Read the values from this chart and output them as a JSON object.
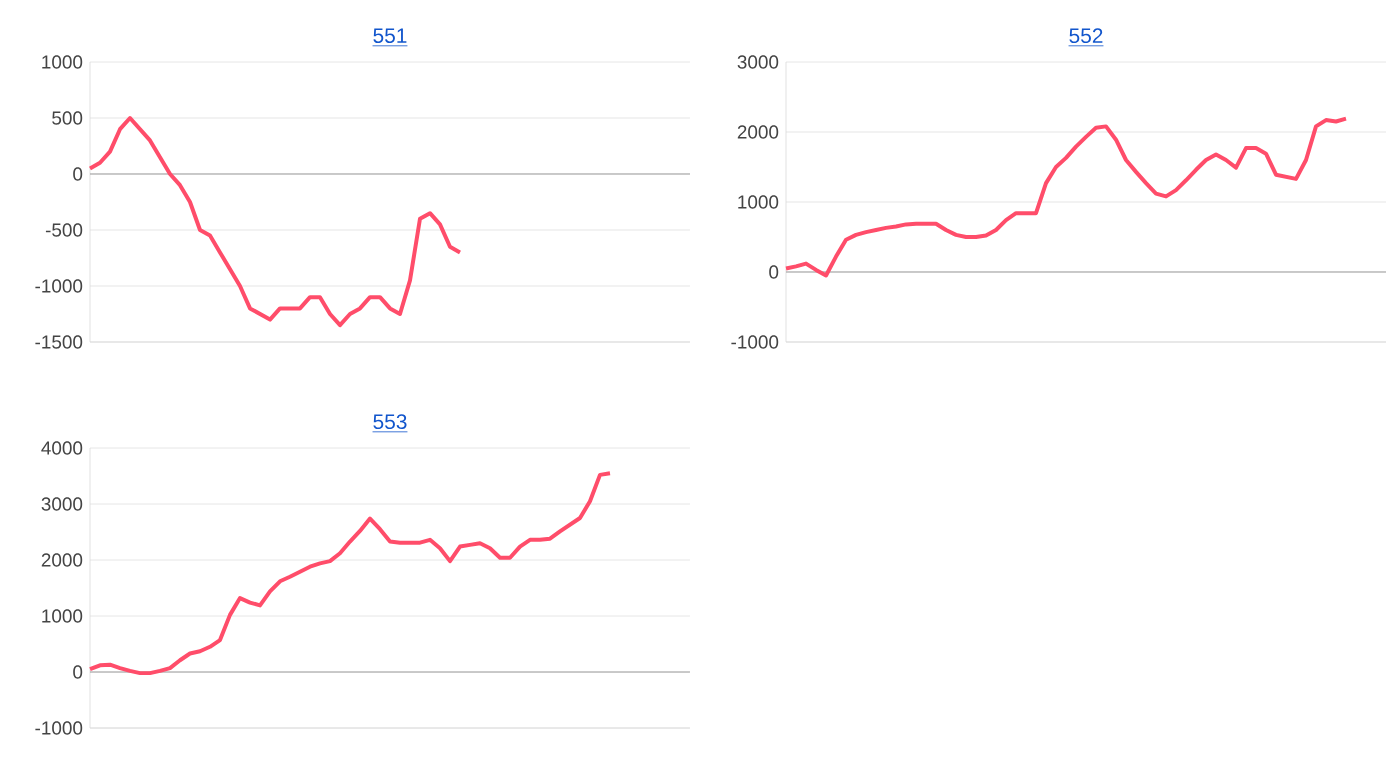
{
  "chart_data": [
    {
      "type": "line",
      "title": "551",
      "categories": [
        null,
        null,
        null,
        null,
        null,
        null,
        null,
        null,
        null,
        null,
        null,
        null,
        null,
        null,
        null,
        null,
        null,
        null,
        null,
        null,
        null,
        null,
        null,
        null,
        null,
        null,
        null,
        null,
        null,
        null,
        null,
        null,
        null,
        null,
        null,
        null,
        null,
        null,
        null,
        null,
        null,
        null,
        null,
        null,
        null,
        null,
        null,
        null,
        null,
        null,
        null,
        null,
        null,
        null,
        null,
        null,
        null,
        null,
        null,
        null,
        null
      ],
      "values": [
        50,
        100,
        200,
        400,
        500,
        400,
        300,
        150,
        0,
        -100,
        -250,
        -500,
        -550,
        -700,
        -850,
        -1000,
        -1200,
        -1250,
        -1300,
        -1200,
        -1200,
        -1200,
        -1100,
        -1100,
        -1250,
        -1350,
        -1250,
        -1200,
        -1100,
        -1100,
        -1200,
        -1250,
        -950,
        -400,
        -350,
        -450,
        -650,
        -700,
        null,
        null,
        null,
        null,
        null,
        null,
        null,
        null,
        null,
        null,
        null,
        null,
        null,
        null,
        null,
        null,
        null,
        null,
        null,
        null,
        null,
        null,
        null
      ],
      "color": "#ff4d6a",
      "ylim": [
        -1500,
        1000
      ],
      "yticks": [
        -1500,
        -1000,
        -500,
        0,
        500,
        1000
      ],
      "grid": "y",
      "tick_labels": "y"
    },
    {
      "type": "line",
      "title": "552",
      "categories": [
        null,
        null,
        null,
        null,
        null,
        null,
        null,
        null,
        null,
        null,
        null,
        null,
        null,
        null,
        null,
        null,
        null,
        null,
        null,
        null,
        null,
        null,
        null,
        null,
        null,
        null,
        null,
        null,
        null,
        null,
        null,
        null,
        null,
        null,
        null,
        null,
        null,
        null,
        null,
        null,
        null,
        null,
        null,
        null,
        null,
        null,
        null,
        null,
        null,
        null,
        null,
        null,
        null,
        null,
        null,
        null,
        null,
        null,
        null,
        null,
        null
      ],
      "values": [
        50,
        80,
        120,
        30,
        -50,
        220,
        460,
        530,
        570,
        600,
        630,
        650,
        680,
        690,
        690,
        690,
        600,
        530,
        500,
        500,
        520,
        600,
        740,
        840,
        840,
        840,
        1270,
        1500,
        1630,
        1790,
        1930,
        2060,
        2080,
        1890,
        1600,
        1430,
        1270,
        1120,
        1080,
        1170,
        1310,
        1460,
        1600,
        1680,
        1600,
        1490,
        1770,
        1770,
        1690,
        1390,
        1360,
        1330,
        1600,
        2080,
        2170,
        2150,
        2190,
        null,
        null,
        null,
        null
      ],
      "color": "#ff4d6a",
      "ylim": [
        -1000,
        3000
      ],
      "yticks": [
        -1000,
        0,
        1000,
        2000,
        3000
      ],
      "grid": "y",
      "tick_labels": "y"
    },
    {
      "type": "line",
      "title": "553",
      "categories": [
        null,
        null,
        null,
        null,
        null,
        null,
        null,
        null,
        null,
        null,
        null,
        null,
        null,
        null,
        null,
        null,
        null,
        null,
        null,
        null,
        null,
        null,
        null,
        null,
        null,
        null,
        null,
        null,
        null,
        null,
        null,
        null,
        null,
        null,
        null,
        null,
        null,
        null,
        null,
        null,
        null,
        null,
        null,
        null,
        null,
        null,
        null,
        null,
        null,
        null,
        null,
        null,
        null,
        null,
        null,
        null,
        null,
        null,
        null,
        null,
        null
      ],
      "values": [
        50,
        120,
        130,
        70,
        20,
        -20,
        -20,
        20,
        70,
        210,
        330,
        370,
        450,
        570,
        1020,
        1320,
        1240,
        1190,
        1440,
        1620,
        1700,
        1790,
        1880,
        1940,
        1980,
        2120,
        2330,
        2520,
        2740,
        2550,
        2330,
        2310,
        2310,
        2310,
        2360,
        2210,
        1980,
        2240,
        2270,
        2300,
        2210,
        2040,
        2040,
        2240,
        2360,
        2360,
        2380,
        2510,
        2630,
        2750,
        3050,
        3520,
        3550,
        null,
        null,
        null,
        null,
        null,
        null,
        null,
        null
      ],
      "color": "#ff4d6a",
      "ylim": [
        -1000,
        4000
      ],
      "yticks": [
        -1000,
        0,
        1000,
        2000,
        3000,
        4000
      ],
      "grid": "y",
      "tick_labels": "y"
    }
  ]
}
